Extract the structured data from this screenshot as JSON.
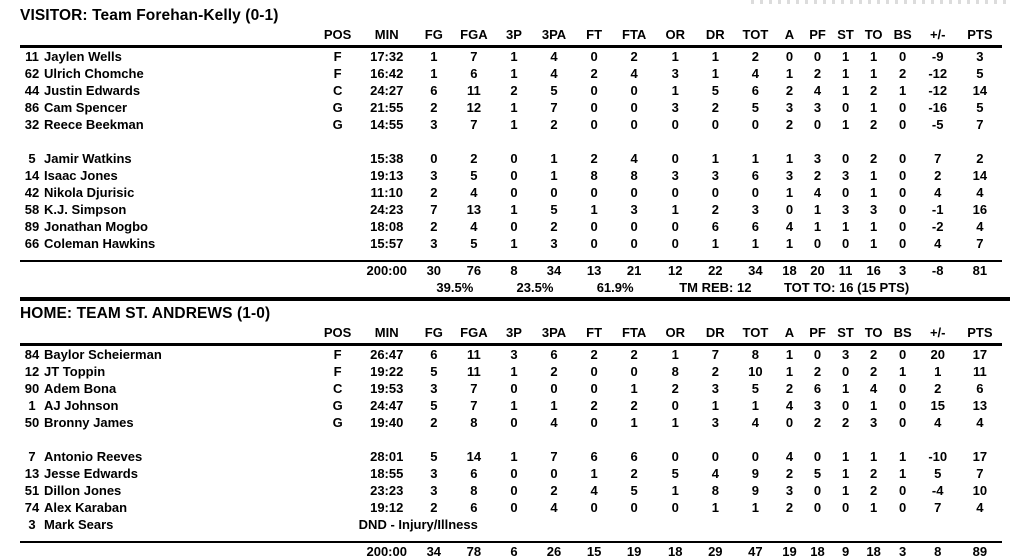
{
  "columns": [
    "POS",
    "MIN",
    "FG",
    "FGA",
    "3P",
    "3PA",
    "FT",
    "FTA",
    "OR",
    "DR",
    "TOT",
    "A",
    "PF",
    "ST",
    "TO",
    "BS",
    "+/-",
    "PTS"
  ],
  "visitor": {
    "title": "VISITOR: Team Forehan-Kelly (0-1)",
    "starters": [
      {
        "num": "11",
        "name": "Jaylen Wells",
        "pos": "F",
        "min": "17:32",
        "stats": [
          "1",
          "7",
          "1",
          "4",
          "0",
          "2",
          "1",
          "1",
          "2",
          "0",
          "0",
          "1",
          "1",
          "0",
          "-9",
          "3"
        ]
      },
      {
        "num": "62",
        "name": "Ulrich Chomche",
        "pos": "F",
        "min": "16:42",
        "stats": [
          "1",
          "6",
          "1",
          "4",
          "2",
          "4",
          "3",
          "1",
          "4",
          "1",
          "2",
          "1",
          "1",
          "2",
          "-12",
          "5"
        ]
      },
      {
        "num": "44",
        "name": "Justin Edwards",
        "pos": "C",
        "min": "24:27",
        "stats": [
          "6",
          "11",
          "2",
          "5",
          "0",
          "0",
          "1",
          "5",
          "6",
          "2",
          "4",
          "1",
          "2",
          "1",
          "-12",
          "14"
        ]
      },
      {
        "num": "86",
        "name": "Cam Spencer",
        "pos": "G",
        "min": "21:55",
        "stats": [
          "2",
          "12",
          "1",
          "7",
          "0",
          "0",
          "3",
          "2",
          "5",
          "3",
          "3",
          "0",
          "1",
          "0",
          "-16",
          "5"
        ]
      },
      {
        "num": "32",
        "name": "Reece Beekman",
        "pos": "G",
        "min": "14:55",
        "stats": [
          "3",
          "7",
          "1",
          "2",
          "0",
          "0",
          "0",
          "0",
          "0",
          "2",
          "0",
          "1",
          "2",
          "0",
          "-5",
          "7"
        ]
      }
    ],
    "bench": [
      {
        "num": "5",
        "name": "Jamir Watkins",
        "pos": "",
        "min": "15:38",
        "stats": [
          "0",
          "2",
          "0",
          "1",
          "2",
          "4",
          "0",
          "1",
          "1",
          "1",
          "3",
          "0",
          "2",
          "0",
          "7",
          "2"
        ]
      },
      {
        "num": "14",
        "name": "Isaac Jones",
        "pos": "",
        "min": "19:13",
        "stats": [
          "3",
          "5",
          "0",
          "1",
          "8",
          "8",
          "3",
          "3",
          "6",
          "3",
          "2",
          "3",
          "1",
          "0",
          "2",
          "14"
        ]
      },
      {
        "num": "42",
        "name": "Nikola Djurisic",
        "pos": "",
        "min": "11:10",
        "stats": [
          "2",
          "4",
          "0",
          "0",
          "0",
          "0",
          "0",
          "0",
          "0",
          "1",
          "4",
          "0",
          "1",
          "0",
          "4",
          "4"
        ]
      },
      {
        "num": "58",
        "name": "K.J. Simpson",
        "pos": "",
        "min": "24:23",
        "stats": [
          "7",
          "13",
          "1",
          "5",
          "1",
          "3",
          "1",
          "2",
          "3",
          "0",
          "1",
          "3",
          "3",
          "0",
          "-1",
          "16"
        ]
      },
      {
        "num": "89",
        "name": "Jonathan Mogbo",
        "pos": "",
        "min": "18:08",
        "stats": [
          "2",
          "4",
          "0",
          "2",
          "0",
          "0",
          "0",
          "6",
          "6",
          "4",
          "1",
          "1",
          "1",
          "0",
          "-2",
          "4"
        ]
      },
      {
        "num": "66",
        "name": "Coleman Hawkins",
        "pos": "",
        "min": "15:57",
        "stats": [
          "3",
          "5",
          "1",
          "3",
          "0",
          "0",
          "0",
          "1",
          "1",
          "1",
          "0",
          "0",
          "1",
          "0",
          "4",
          "7"
        ]
      }
    ],
    "totals": {
      "min": "200:00",
      "stats": [
        "30",
        "76",
        "8",
        "34",
        "13",
        "21",
        "12",
        "22",
        "34",
        "18",
        "20",
        "11",
        "16",
        "3",
        "-8",
        "81"
      ]
    },
    "summary": {
      "fg_pct": "39.5%",
      "tp_pct": "23.5%",
      "ft_pct": "61.9%",
      "team_rebounds": "TM REB: 12",
      "total_turnovers": "TOT TO: 16 (15 PTS)"
    }
  },
  "home": {
    "title": "HOME: TEAM ST. ANDREWS (1-0)",
    "starters": [
      {
        "num": "84",
        "name": "Baylor Scheierman",
        "pos": "F",
        "min": "26:47",
        "stats": [
          "6",
          "11",
          "3",
          "6",
          "2",
          "2",
          "1",
          "7",
          "8",
          "1",
          "0",
          "3",
          "2",
          "0",
          "20",
          "17"
        ]
      },
      {
        "num": "12",
        "name": "JT Toppin",
        "pos": "F",
        "min": "19:22",
        "stats": [
          "5",
          "11",
          "1",
          "2",
          "0",
          "0",
          "8",
          "2",
          "10",
          "1",
          "2",
          "0",
          "2",
          "1",
          "1",
          "11"
        ]
      },
      {
        "num": "90",
        "name": "Adem Bona",
        "pos": "C",
        "min": "19:53",
        "stats": [
          "3",
          "7",
          "0",
          "0",
          "0",
          "1",
          "2",
          "3",
          "5",
          "2",
          "6",
          "1",
          "4",
          "0",
          "2",
          "6"
        ]
      },
      {
        "num": "1",
        "name": "AJ Johnson",
        "pos": "G",
        "min": "24:47",
        "stats": [
          "5",
          "7",
          "1",
          "1",
          "2",
          "2",
          "0",
          "1",
          "1",
          "4",
          "3",
          "0",
          "1",
          "0",
          "15",
          "13"
        ]
      },
      {
        "num": "50",
        "name": "Bronny James",
        "pos": "G",
        "min": "19:40",
        "stats": [
          "2",
          "8",
          "0",
          "4",
          "0",
          "1",
          "1",
          "3",
          "4",
          "0",
          "2",
          "2",
          "3",
          "0",
          "4",
          "4"
        ]
      }
    ],
    "bench": [
      {
        "num": "7",
        "name": "Antonio Reeves",
        "pos": "",
        "min": "28:01",
        "stats": [
          "5",
          "14",
          "1",
          "7",
          "6",
          "6",
          "0",
          "0",
          "0",
          "4",
          "0",
          "1",
          "1",
          "1",
          "-10",
          "17"
        ]
      },
      {
        "num": "13",
        "name": "Jesse Edwards",
        "pos": "",
        "min": "18:55",
        "stats": [
          "3",
          "6",
          "0",
          "0",
          "1",
          "2",
          "5",
          "4",
          "9",
          "2",
          "5",
          "1",
          "2",
          "1",
          "5",
          "7"
        ]
      },
      {
        "num": "51",
        "name": "Dillon Jones",
        "pos": "",
        "min": "23:23",
        "stats": [
          "3",
          "8",
          "0",
          "2",
          "4",
          "5",
          "1",
          "8",
          "9",
          "3",
          "0",
          "1",
          "2",
          "0",
          "-4",
          "10"
        ]
      },
      {
        "num": "74",
        "name": "Alex Karaban",
        "pos": "",
        "min": "19:12",
        "stats": [
          "2",
          "6",
          "0",
          "4",
          "0",
          "0",
          "0",
          "1",
          "1",
          "2",
          "0",
          "0",
          "1",
          "0",
          "7",
          "4"
        ]
      },
      {
        "num": "3",
        "name": "Mark Sears",
        "pos": "",
        "dnd": "DND - Injury/Illness"
      }
    ],
    "totals": {
      "min": "200:00",
      "stats": [
        "34",
        "78",
        "6",
        "26",
        "15",
        "19",
        "18",
        "29",
        "47",
        "19",
        "18",
        "9",
        "18",
        "3",
        "8",
        "89"
      ]
    }
  }
}
